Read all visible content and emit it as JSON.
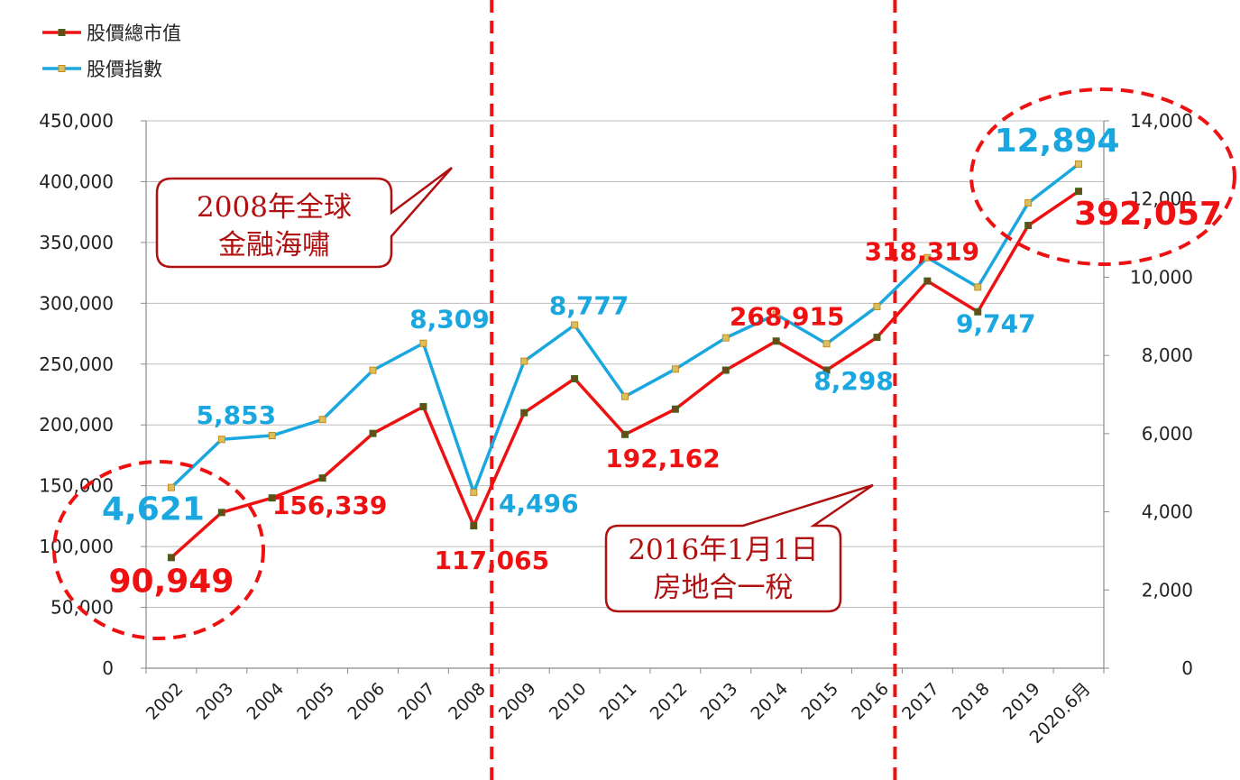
{
  "chart_data": {
    "type": "line",
    "categories": [
      "2002",
      "2003",
      "2004",
      "2005",
      "2006",
      "2007",
      "2008",
      "2009",
      "2010",
      "2011",
      "2012",
      "2013",
      "2014",
      "2015",
      "2016",
      "2017",
      "2018",
      "2019",
      "2020.6月"
    ],
    "series": [
      {
        "name": "股價總市值",
        "axis": "left",
        "color": "#ee1111",
        "values": [
          90949,
          128000,
          140000,
          156339,
          193000,
          215000,
          117065,
          210000,
          238000,
          192162,
          213000,
          245000,
          268915,
          245000,
          272000,
          318319,
          293000,
          364000,
          392057
        ]
      },
      {
        "name": "股價指數",
        "axis": "right",
        "color": "#1aa7e0",
        "values": [
          4621,
          5853,
          5950,
          6360,
          7620,
          8309,
          4496,
          7850,
          8777,
          6950,
          7650,
          8450,
          9050,
          8298,
          9250,
          10500,
          9747,
          11900,
          12894
        ]
      }
    ],
    "y_left": {
      "range": [
        0,
        450000
      ],
      "ticks": [
        "0",
        "50,000",
        "100,000",
        "150,000",
        "200,000",
        "250,000",
        "300,000",
        "350,000",
        "400,000",
        "450,000"
      ]
    },
    "y_right": {
      "range": [
        0,
        14000
      ],
      "ticks": [
        "0",
        "2,000",
        "4,000",
        "6,000",
        "8,000",
        "10,000",
        "12,000",
        "14,000"
      ]
    },
    "grid": true,
    "legend_position": "top-left",
    "red_labels": [
      {
        "index": 0,
        "text": "90,949"
      },
      {
        "index": 3,
        "text": "156,339"
      },
      {
        "index": 6,
        "text": "117,065"
      },
      {
        "index": 9,
        "text": "192,162"
      },
      {
        "index": 12,
        "text": "268,915"
      },
      {
        "index": 15,
        "text": "318,319"
      },
      {
        "index": 18,
        "text": "392,057"
      }
    ],
    "blue_labels": [
      {
        "index": 0,
        "text": "4,621"
      },
      {
        "index": 1,
        "text": "5,853"
      },
      {
        "index": 5,
        "text": "8,309"
      },
      {
        "index": 6,
        "text": "4,496"
      },
      {
        "index": 8,
        "text": "8,777"
      },
      {
        "index": 13,
        "text": "8,298"
      },
      {
        "index": 16,
        "text": "9,747"
      },
      {
        "index": 18,
        "text": "12,894"
      }
    ],
    "annotations": [
      {
        "lines": [
          "2008年全球",
          "金融海嘯"
        ]
      },
      {
        "lines": [
          "2016年1月1日",
          "房地合一稅"
        ]
      }
    ],
    "colors": {
      "red": "#ee1111",
      "blue": "#1aa7e0",
      "callout_text": "#b01010",
      "grid": "#bdbdbd"
    }
  }
}
